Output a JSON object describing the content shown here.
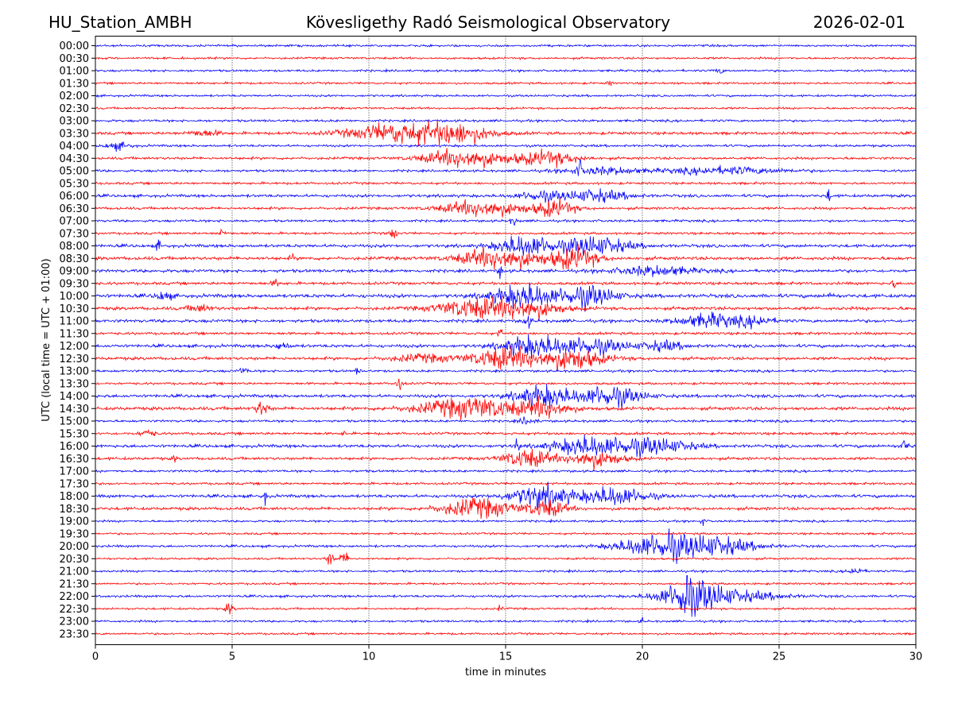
{
  "header": {
    "station": "HU_Station_AMBH",
    "observatory": "Kövesligethy Radó Seismological Observatory",
    "date": "2026-02-01"
  },
  "chart_data": {
    "type": "line",
    "title": "Kövesligethy Radó Seismological Observatory",
    "xlabel": "time in minutes",
    "ylabel": "UTC (local time = UTC + 01:00)",
    "xlim": [
      0,
      30
    ],
    "xticks": [
      0,
      5,
      10,
      15,
      20,
      25,
      30
    ],
    "grid": "vertical dotted at each x tick",
    "colors": [
      "#0000ff",
      "#ff0000"
    ],
    "rows": [
      {
        "label": "00:00",
        "noise": 0.9,
        "bursts": []
      },
      {
        "label": "00:30",
        "noise": 0.9,
        "bursts": []
      },
      {
        "label": "01:00",
        "noise": 0.9,
        "bursts": [
          [
            22.8,
            0.1,
            3
          ]
        ]
      },
      {
        "label": "01:30",
        "noise": 0.9,
        "bursts": [
          [
            18.8,
            0.05,
            3
          ]
        ]
      },
      {
        "label": "02:00",
        "noise": 0.9,
        "bursts": []
      },
      {
        "label": "02:30",
        "noise": 0.9,
        "bursts": []
      },
      {
        "label": "03:00",
        "noise": 1.0,
        "bursts": []
      },
      {
        "label": "03:30",
        "noise": 1.2,
        "bursts": [
          [
            11.0,
            1.2,
            8
          ],
          [
            13.2,
            0.9,
            8
          ],
          [
            4.0,
            0.4,
            2.5
          ]
        ]
      },
      {
        "label": "04:00",
        "noise": 1.0,
        "bursts": [
          [
            0.8,
            0.3,
            3
          ]
        ]
      },
      {
        "label": "04:30",
        "noise": 1.1,
        "bursts": [
          [
            13.5,
            1.0,
            8
          ],
          [
            16.5,
            0.8,
            6
          ]
        ]
      },
      {
        "label": "05:00",
        "noise": 1.0,
        "bursts": [
          [
            17.7,
            0.05,
            8
          ],
          [
            18.5,
            1.0,
            3
          ],
          [
            23.0,
            1.5,
            3
          ]
        ]
      },
      {
        "label": "05:30",
        "noise": 1.0,
        "bursts": []
      },
      {
        "label": "06:00",
        "noise": 1.2,
        "bursts": [
          [
            16.3,
            0.6,
            4
          ],
          [
            18.3,
            0.8,
            5
          ],
          [
            26.8,
            0.05,
            6
          ]
        ]
      },
      {
        "label": "06:30",
        "noise": 1.1,
        "bursts": [
          [
            14.2,
            1.0,
            7
          ],
          [
            16.8,
            0.5,
            7
          ]
        ]
      },
      {
        "label": "07:00",
        "noise": 1.0,
        "bursts": [
          [
            15.3,
            0.1,
            3
          ]
        ]
      },
      {
        "label": "07:30",
        "noise": 1.0,
        "bursts": [
          [
            4.6,
            0.1,
            3
          ],
          [
            10.9,
            0.1,
            5
          ]
        ]
      },
      {
        "label": "08:00",
        "noise": 1.3,
        "bursts": [
          [
            15.7,
            0.7,
            9
          ],
          [
            18.2,
            0.9,
            8
          ],
          [
            2.3,
            0.05,
            5
          ]
        ]
      },
      {
        "label": "08:30",
        "noise": 1.4,
        "bursts": [
          [
            14.8,
            1.0,
            9
          ],
          [
            17.5,
            0.6,
            9
          ],
          [
            7.2,
            0.05,
            4
          ]
        ]
      },
      {
        "label": "09:00",
        "noise": 1.3,
        "bursts": [
          [
            14.8,
            0.05,
            6
          ],
          [
            20.5,
            1.0,
            4
          ]
        ]
      },
      {
        "label": "09:30",
        "noise": 1.2,
        "bursts": [
          [
            29.2,
            0.05,
            5
          ],
          [
            6.6,
            0.1,
            3
          ]
        ]
      },
      {
        "label": "10:00",
        "noise": 1.5,
        "bursts": [
          [
            15.7,
            0.8,
            10
          ],
          [
            18.0,
            0.7,
            9
          ],
          [
            2.5,
            0.2,
            4
          ],
          [
            26.9,
            0.05,
            6
          ]
        ]
      },
      {
        "label": "10:30",
        "noise": 1.4,
        "bursts": [
          [
            13.8,
            0.9,
            8
          ],
          [
            15.8,
            0.8,
            8
          ],
          [
            3.8,
            0.3,
            3
          ]
        ]
      },
      {
        "label": "11:00",
        "noise": 1.3,
        "bursts": [
          [
            22.5,
            0.8,
            6
          ],
          [
            24.2,
            0.4,
            4
          ],
          [
            15.8,
            0.1,
            5
          ]
        ]
      },
      {
        "label": "11:30",
        "noise": 1.1,
        "bursts": [
          [
            14.8,
            0.05,
            5
          ]
        ]
      },
      {
        "label": "12:00",
        "noise": 1.3,
        "bursts": [
          [
            15.9,
            0.7,
            8
          ],
          [
            18.0,
            1.0,
            7
          ],
          [
            20.8,
            0.5,
            4
          ],
          [
            6.8,
            0.2,
            3
          ]
        ]
      },
      {
        "label": "12:30",
        "noise": 1.3,
        "bursts": [
          [
            14.9,
            0.8,
            9
          ],
          [
            17.3,
            0.9,
            9
          ],
          [
            12.0,
            0.8,
            3
          ]
        ]
      },
      {
        "label": "13:00",
        "noise": 1.0,
        "bursts": [
          [
            9.6,
            0.05,
            4
          ],
          [
            5.4,
            0.1,
            3
          ]
        ]
      },
      {
        "label": "13:30",
        "noise": 1.0,
        "bursts": [
          [
            11.1,
            0.1,
            5
          ]
        ]
      },
      {
        "label": "14:00",
        "noise": 1.3,
        "bursts": [
          [
            16.4,
            0.7,
            9
          ],
          [
            18.8,
            0.8,
            9
          ]
        ]
      },
      {
        "label": "14:30",
        "noise": 1.4,
        "bursts": [
          [
            13.8,
            1.3,
            9
          ],
          [
            16.5,
            0.6,
            7
          ],
          [
            6.1,
            0.15,
            7
          ]
        ]
      },
      {
        "label": "15:00",
        "noise": 1.0,
        "bursts": [
          [
            15.8,
            0.2,
            3
          ]
        ]
      },
      {
        "label": "15:30",
        "noise": 1.1,
        "bursts": [
          [
            1.9,
            0.2,
            3
          ],
          [
            9.1,
            0.05,
            3
          ]
        ]
      },
      {
        "label": "16:00",
        "noise": 1.3,
        "bursts": [
          [
            15.4,
            0.05,
            8
          ],
          [
            18.0,
            0.9,
            8
          ],
          [
            20.3,
            1.0,
            7
          ],
          [
            29.6,
            0.1,
            5
          ]
        ]
      },
      {
        "label": "16:30",
        "noise": 1.2,
        "bursts": [
          [
            15.8,
            0.6,
            8
          ],
          [
            18.2,
            0.7,
            7
          ],
          [
            2.9,
            0.05,
            3
          ]
        ]
      },
      {
        "label": "17:00",
        "noise": 1.0,
        "bursts": []
      },
      {
        "label": "17:30",
        "noise": 1.0,
        "bursts": []
      },
      {
        "label": "18:00",
        "noise": 1.3,
        "bursts": [
          [
            16.3,
            0.8,
            9
          ],
          [
            19.0,
            0.8,
            8
          ],
          [
            6.2,
            0.05,
            6
          ]
        ]
      },
      {
        "label": "18:30",
        "noise": 1.3,
        "bursts": [
          [
            14.0,
            0.9,
            8
          ],
          [
            16.5,
            0.5,
            7
          ]
        ]
      },
      {
        "label": "19:00",
        "noise": 0.9,
        "bursts": [
          [
            22.2,
            0.05,
            4
          ]
        ]
      },
      {
        "label": "19:30",
        "noise": 0.9,
        "bursts": []
      },
      {
        "label": "20:00",
        "noise": 1.0,
        "bursts": [
          [
            20.5,
            1.0,
            9
          ],
          [
            22.5,
            1.1,
            8
          ],
          [
            21.0,
            0.05,
            9
          ]
        ]
      },
      {
        "label": "20:30",
        "noise": 0.9,
        "bursts": [
          [
            8.6,
            0.1,
            6
          ],
          [
            9.1,
            0.1,
            6
          ]
        ]
      },
      {
        "label": "21:00",
        "noise": 0.9,
        "bursts": [
          [
            27.8,
            0.2,
            3
          ]
        ]
      },
      {
        "label": "21:30",
        "noise": 0.9,
        "bursts": []
      },
      {
        "label": "22:00",
        "noise": 1.0,
        "bursts": [
          [
            21.8,
            0.8,
            14
          ],
          [
            23.5,
            1.2,
            4
          ],
          [
            21.6,
            0.08,
            30
          ]
        ]
      },
      {
        "label": "22:30",
        "noise": 0.9,
        "bursts": [
          [
            4.9,
            0.1,
            5
          ],
          [
            14.8,
            0.05,
            3
          ]
        ]
      },
      {
        "label": "23:00",
        "noise": 0.9,
        "bursts": [
          [
            20.0,
            0.05,
            3
          ]
        ]
      },
      {
        "label": "23:30",
        "noise": 0.9,
        "bursts": []
      }
    ]
  }
}
